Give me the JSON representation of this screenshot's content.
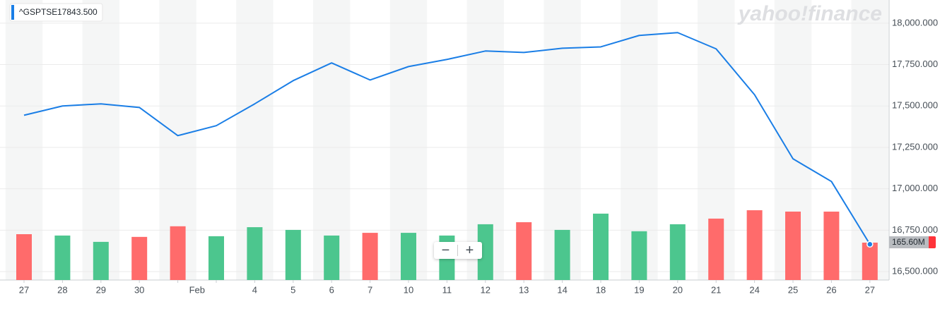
{
  "chart_data": {
    "type": "line",
    "legend_symbol": "^GSPTSE",
    "legend_value": "17843.500",
    "watermark": "yahoo!finance",
    "month_label": "Feb",
    "categories": [
      "27",
      "28",
      "29",
      "30",
      null,
      null,
      "4",
      "5",
      "6",
      "7",
      "10",
      "11",
      "12",
      "13",
      "14",
      "18",
      "19",
      "20",
      "21",
      "24",
      "25",
      "26",
      "27"
    ],
    "series": [
      {
        "name": "^GSPTSE",
        "color": "#1a7ee6",
        "values": [
          17444,
          17500,
          17513,
          17491,
          17321,
          17381,
          17513,
          17653,
          17760,
          17657,
          17738,
          17781,
          17832,
          17823,
          17849,
          17857,
          17926,
          17943,
          17845,
          17568,
          17181,
          17044,
          16665
        ]
      },
      {
        "name": "Volume",
        "axis": "y2",
        "colors": [
          "#ff6b6b",
          "#4cc68e",
          "#4cc68e",
          "#ff6b6b",
          "#ff6b6b",
          "#4cc68e",
          "#4cc68e",
          "#4cc68e",
          "#4cc68e",
          "#ff6b6b",
          "#4cc68e",
          "#4cc68e",
          "#4cc68e",
          "#ff6b6b",
          "#4cc68e",
          "#4cc68e",
          "#4cc68e",
          "#4cc68e",
          "#ff6b6b",
          "#ff6b6b",
          "#ff6b6b",
          "#ff6b6b",
          "#ff6b6b"
        ],
        "values": [
          203,
          197,
          169,
          191,
          238,
          194,
          234,
          222,
          197,
          209,
          209,
          197,
          247,
          256,
          222,
          294,
          216,
          247,
          272,
          309,
          303,
          303,
          165.6
        ],
        "value_labels": [
          null,
          null,
          null,
          null,
          null,
          null,
          null,
          null,
          null,
          null,
          null,
          null,
          null,
          null,
          null,
          null,
          null,
          null,
          null,
          null,
          null,
          null,
          "165.60M"
        ]
      }
    ],
    "ylim": [
      16449,
      18140
    ],
    "yticks": [
      {
        "value": 16500,
        "label": "16,500.000"
      },
      {
        "value": 16750,
        "label": "16,750.000"
      },
      {
        "value": 17000,
        "label": "17,000.000"
      },
      {
        "value": 17250,
        "label": "17,250.000"
      },
      {
        "value": 17500,
        "label": "17,500.000"
      },
      {
        "value": 17750,
        "label": "17,750.000"
      },
      {
        "value": 18000,
        "label": "18,000.000"
      }
    ],
    "y2lim": [
      0,
      1240
    ],
    "grid": true
  },
  "controls": {
    "zoom_out": "−",
    "zoom_in": "+"
  }
}
